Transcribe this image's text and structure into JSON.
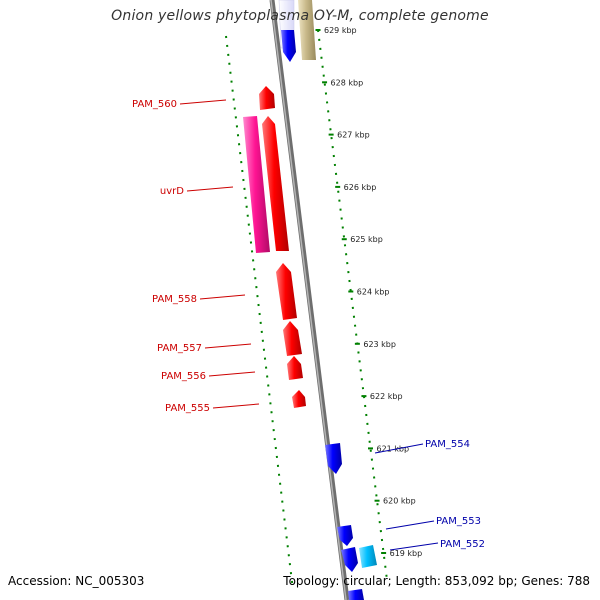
{
  "title": "Onion yellows phytoplasma OY-M, complete genome",
  "footer": {
    "accession": "Accession: NC_005303",
    "topology": "Topology: circular; Length: 853,092 bp; Genes: 788"
  },
  "colors": {
    "forward_strand": "#ff0000",
    "reverse_strand": "#0000ff",
    "pink_gene": "#ff1493",
    "khaki_gene": "#c8b98a",
    "cyan_gene": "#00bfff",
    "backbone": "#888888",
    "tick": "#008000",
    "label_red": "#cc0000",
    "label_blue": "#0000aa"
  },
  "ruler": [
    {
      "kbp": 629,
      "label": "629 kbp"
    },
    {
      "kbp": 628,
      "label": "628 kbp"
    },
    {
      "kbp": 627,
      "label": "627 kbp"
    },
    {
      "kbp": 626,
      "label": "626 kbp"
    },
    {
      "kbp": 625,
      "label": "625 kbp"
    },
    {
      "kbp": 624,
      "label": "624 kbp"
    },
    {
      "kbp": 623,
      "label": "623 kbp"
    },
    {
      "kbp": 622,
      "label": "622 kbp"
    },
    {
      "kbp": 621,
      "label": "621 kbp"
    },
    {
      "kbp": 620,
      "label": "620 kbp"
    },
    {
      "kbp": 619,
      "label": "619 kbp"
    }
  ],
  "gene_labels": [
    {
      "name": "PAM_560",
      "color": "#cc0000"
    },
    {
      "name": "uvrD",
      "color": "#cc0000"
    },
    {
      "name": "PAM_558",
      "color": "#cc0000"
    },
    {
      "name": "PAM_557",
      "color": "#cc0000"
    },
    {
      "name": "PAM_556",
      "color": "#cc0000"
    },
    {
      "name": "PAM_555",
      "color": "#cc0000"
    },
    {
      "name": "PAM_554",
      "color": "#0000aa"
    },
    {
      "name": "PAM_553",
      "color": "#0000aa"
    },
    {
      "name": "PAM_552",
      "color": "#0000aa"
    }
  ]
}
